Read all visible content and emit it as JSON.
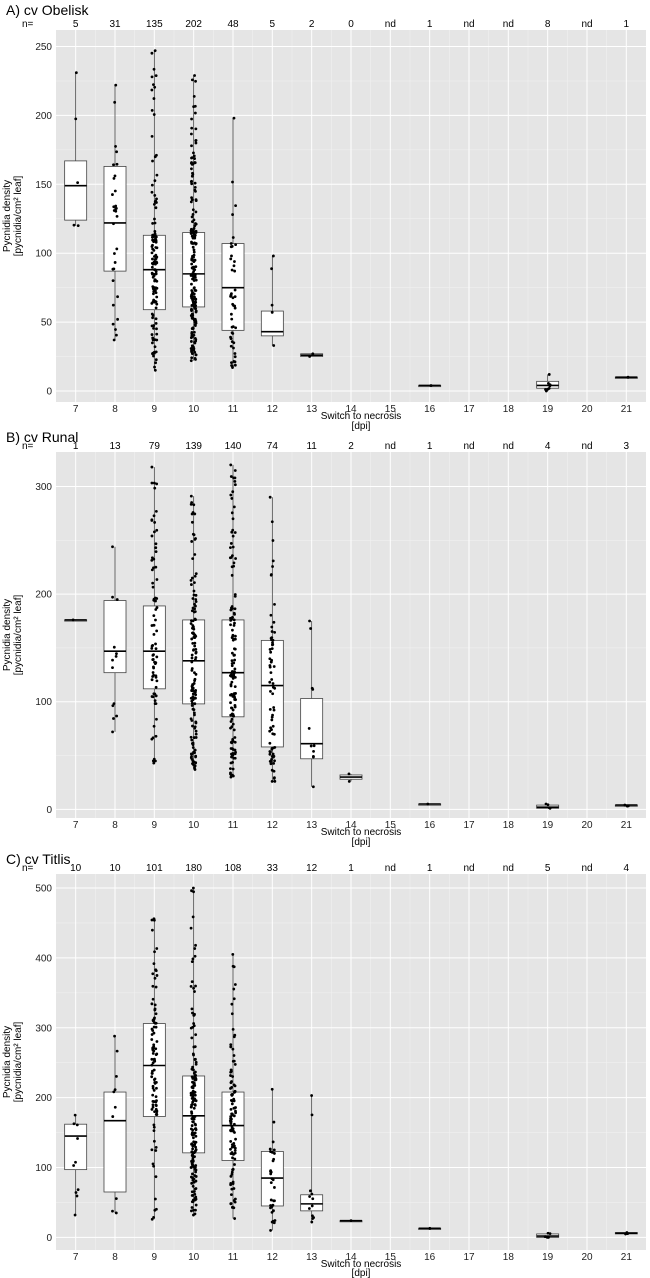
{
  "colors": {
    "panel_bg": "#e5e5e5",
    "grid": "#ffffff",
    "box_fill": "#ffffff",
    "box_stroke": "#444444",
    "point": "#000000"
  },
  "chart_data": [
    {
      "type": "box",
      "title": "A) cv Obelisk",
      "n_prefix": "n=",
      "categories": [
        "7",
        "8",
        "9",
        "10",
        "11",
        "12",
        "13",
        "14",
        "15",
        "16",
        "17",
        "18",
        "19",
        "20",
        "21"
      ],
      "n_counts": [
        "5",
        "31",
        "135",
        "202",
        "48",
        "5",
        "2",
        "0",
        "nd",
        "1",
        "nd",
        "nd",
        "8",
        "nd",
        "1"
      ],
      "xlabel": "Switch to necrosis",
      "xlabel2": "[dpi]",
      "ylabel": "Pycnidia density",
      "ylabel2": "[pycnidia/cm² leaf]",
      "ylim": [
        -8,
        262
      ],
      "yticks": [
        0,
        50,
        100,
        150,
        200,
        250
      ],
      "boxes": [
        {
          "cat": "7",
          "min": 120,
          "q1": 124,
          "median": 149,
          "q3": 167,
          "max": 231
        },
        {
          "cat": "8",
          "min": 37,
          "q1": 87,
          "median": 122,
          "q3": 163,
          "max": 222
        },
        {
          "cat": "9",
          "min": 15,
          "q1": 59,
          "median": 88,
          "q3": 113,
          "max": 247
        },
        {
          "cat": "10",
          "min": 22,
          "q1": 61,
          "median": 85,
          "q3": 115,
          "max": 229
        },
        {
          "cat": "11",
          "min": 17,
          "q1": 44,
          "median": 75,
          "q3": 107,
          "max": 198
        },
        {
          "cat": "12",
          "min": 33,
          "q1": 40,
          "median": 43,
          "q3": 58,
          "max": 98
        },
        {
          "cat": "13",
          "min": 25,
          "q1": 25,
          "median": 26,
          "q3": 27,
          "max": 27
        },
        {
          "cat": "16",
          "min": 4,
          "q1": 4,
          "median": 4,
          "q3": 4,
          "max": 4
        },
        {
          "cat": "19",
          "min": 0,
          "q1": 2,
          "median": 4,
          "q3": 7,
          "max": 12
        },
        {
          "cat": "21",
          "min": 10,
          "q1": 10,
          "median": 10,
          "q3": 10,
          "max": 10
        }
      ]
    },
    {
      "type": "box",
      "title": "B) cv Runal",
      "n_prefix": "n=",
      "categories": [
        "7",
        "8",
        "9",
        "10",
        "11",
        "12",
        "13",
        "14",
        "15",
        "16",
        "17",
        "18",
        "19",
        "20",
        "21"
      ],
      "n_counts": [
        "1",
        "13",
        "79",
        "139",
        "140",
        "74",
        "11",
        "2",
        "nd",
        "1",
        "nd",
        "nd",
        "4",
        "nd",
        "3"
      ],
      "xlabel": "Switch to necrosis",
      "xlabel2": "[dpi]",
      "ylabel": "Pycnidia density",
      "ylabel2": "[pycnidia/cm² leaf]",
      "ylim": [
        -8,
        332
      ],
      "yticks": [
        0,
        100,
        200,
        300
      ],
      "boxes": [
        {
          "cat": "7",
          "min": 176,
          "q1": 176,
          "median": 176,
          "q3": 176,
          "max": 176
        },
        {
          "cat": "8",
          "min": 72,
          "q1": 127,
          "median": 147,
          "q3": 194,
          "max": 244
        },
        {
          "cat": "9",
          "min": 43,
          "q1": 112,
          "median": 147,
          "q3": 189,
          "max": 318
        },
        {
          "cat": "10",
          "min": 37,
          "q1": 98,
          "median": 138,
          "q3": 176,
          "max": 291
        },
        {
          "cat": "11",
          "min": 30,
          "q1": 86,
          "median": 127,
          "q3": 176,
          "max": 320
        },
        {
          "cat": "12",
          "min": 26,
          "q1": 58,
          "median": 115,
          "q3": 157,
          "max": 290
        },
        {
          "cat": "13",
          "min": 21,
          "q1": 47,
          "median": 61,
          "q3": 103,
          "max": 175
        },
        {
          "cat": "14",
          "min": 26,
          "q1": 28,
          "median": 30,
          "q3": 32,
          "max": 33
        },
        {
          "cat": "16",
          "min": 5,
          "q1": 5,
          "median": 5,
          "q3": 5,
          "max": 5
        },
        {
          "cat": "19",
          "min": 1,
          "q1": 1,
          "median": 2,
          "q3": 4,
          "max": 5
        },
        {
          "cat": "21",
          "min": 3,
          "q1": 3,
          "median": 4,
          "q3": 4,
          "max": 4
        }
      ]
    },
    {
      "type": "box",
      "title": "C) cv Titlis",
      "n_prefix": "n=",
      "categories": [
        "7",
        "8",
        "9",
        "10",
        "11",
        "12",
        "13",
        "14",
        "15",
        "16",
        "17",
        "18",
        "19",
        "20",
        "21"
      ],
      "n_counts": [
        "10",
        "10",
        "101",
        "180",
        "108",
        "33",
        "12",
        "1",
        "nd",
        "1",
        "nd",
        "nd",
        "5",
        "nd",
        "4"
      ],
      "xlabel": "Switch to necrosis",
      "xlabel2": "[dpi]",
      "ylabel": "Pycnidia density",
      "ylabel2": "[pycnidia/cm² leaf]",
      "ylim": [
        -18,
        520
      ],
      "yticks": [
        0,
        100,
        200,
        300,
        400,
        500
      ],
      "boxes": [
        {
          "cat": "7",
          "min": 32,
          "q1": 97,
          "median": 145,
          "q3": 162,
          "max": 175
        },
        {
          "cat": "8",
          "min": 35,
          "q1": 65,
          "median": 167,
          "q3": 208,
          "max": 288
        },
        {
          "cat": "9",
          "min": 26,
          "q1": 173,
          "median": 246,
          "q3": 306,
          "max": 456
        },
        {
          "cat": "10",
          "min": 32,
          "q1": 121,
          "median": 174,
          "q3": 231,
          "max": 500
        },
        {
          "cat": "11",
          "min": 27,
          "q1": 110,
          "median": 160,
          "q3": 208,
          "max": 405
        },
        {
          "cat": "12",
          "min": 10,
          "q1": 45,
          "median": 85,
          "q3": 123,
          "max": 212
        },
        {
          "cat": "13",
          "min": 22,
          "q1": 38,
          "median": 48,
          "q3": 61,
          "max": 203
        },
        {
          "cat": "14",
          "min": 24,
          "q1": 24,
          "median": 24,
          "q3": 24,
          "max": 24
        },
        {
          "cat": "16",
          "min": 13,
          "q1": 13,
          "median": 13,
          "q3": 13,
          "max": 13
        },
        {
          "cat": "19",
          "min": 0,
          "q1": 0,
          "median": 2,
          "q3": 5,
          "max": 6
        },
        {
          "cat": "21",
          "min": 5,
          "q1": 5,
          "median": 6,
          "q3": 7,
          "max": 7
        }
      ]
    }
  ]
}
